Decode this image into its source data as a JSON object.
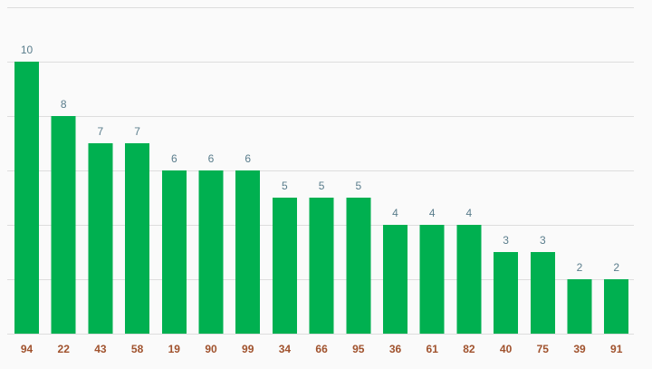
{
  "chart_data": {
    "type": "bar",
    "categories": [
      "94",
      "22",
      "43",
      "58",
      "19",
      "90",
      "99",
      "34",
      "66",
      "95",
      "36",
      "61",
      "82",
      "40",
      "75",
      "39",
      "91"
    ],
    "values": [
      10,
      8,
      7,
      7,
      6,
      6,
      6,
      5,
      5,
      5,
      4,
      4,
      4,
      3,
      3,
      2,
      2
    ],
    "title": "",
    "xlabel": "",
    "ylabel": "",
    "ylim": [
      0,
      12
    ],
    "grid": true,
    "legend": "none",
    "data_labels": true
  },
  "colors": {
    "bar": "#00b050",
    "value_label": "#5a7d8c",
    "category_label": "#a0522d",
    "grid": "#dddddd",
    "background": "#fafafa"
  }
}
